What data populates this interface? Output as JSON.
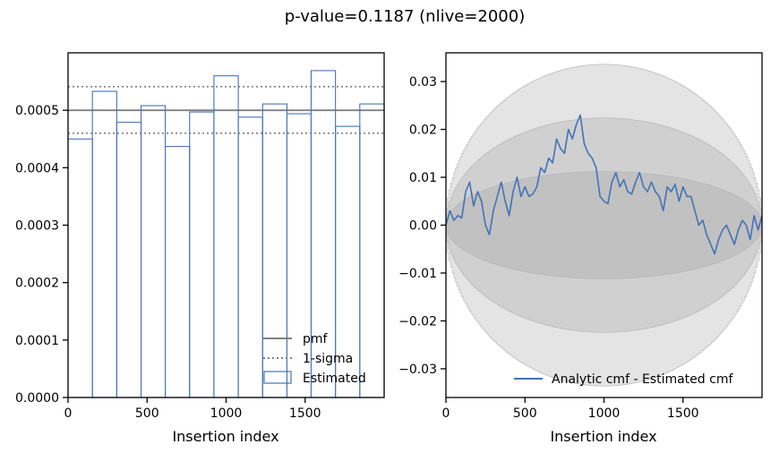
{
  "figure": {
    "suptitle": "p-value=0.1187 (nlive=2000)"
  },
  "chart_data": [
    {
      "type": "histogram",
      "title": "",
      "xlabel": "Insertion index",
      "ylabel": "",
      "xlim": [
        0,
        2000
      ],
      "ylim": [
        0,
        0.0006
      ],
      "xticks": [
        0,
        500,
        1000,
        1500
      ],
      "yticks": [
        0,
        0.0001,
        0.0002,
        0.0003,
        0.0004,
        0.0005
      ],
      "xtick_labels": [
        "0",
        "500",
        "1000",
        "1500"
      ],
      "ytick_labels": [
        "0.0000",
        "0.0001",
        "0.0002",
        "0.0003",
        "0.0004",
        "0.0005"
      ],
      "bin_edges": [
        0,
        154,
        308,
        462,
        615,
        769,
        923,
        1077,
        1231,
        1385,
        1538,
        1692,
        1846,
        2000
      ],
      "estimated": [
        0.00045,
        0.000533,
        0.000479,
        0.000508,
        0.000437,
        0.000497,
        0.00056,
        0.000488,
        0.000511,
        0.000494,
        0.000569,
        0.000472,
        0.000511
      ],
      "pmf": 0.0005,
      "sigma_band": [
        0.00046,
        0.000541
      ],
      "legend_position": "lower right",
      "legend": {
        "pmf": "pmf",
        "sigma": "1-sigma",
        "estimated": "Estimated"
      },
      "colors": {
        "pmf": "#808080",
        "sigma": "#808080",
        "estimated": "#4472b8"
      }
    },
    {
      "type": "line",
      "title": "",
      "xlabel": "Insertion index",
      "ylabel": "",
      "xlim": [
        0,
        2000
      ],
      "ylim": [
        -0.036,
        0.036
      ],
      "xticks": [
        0,
        500,
        1000,
        1500
      ],
      "yticks": [
        -0.03,
        -0.02,
        -0.01,
        0,
        0.01,
        0.02,
        0.03
      ],
      "xtick_labels": [
        "0",
        "500",
        "1000",
        "1500"
      ],
      "ytick_labels": [
        "−0.03",
        "−0.02",
        "−0.01",
        "0.00",
        "0.01",
        "0.02",
        "0.03"
      ],
      "bands_sigma_multiples": [
        1,
        2,
        3
      ],
      "band_sigma_peak": 0.0112,
      "series": [
        {
          "name": "Analytic cmf - Estimated cmf",
          "color": "#4472b8",
          "x": [
            0,
            25,
            50,
            75,
            100,
            125,
            150,
            175,
            200,
            225,
            250,
            275,
            300,
            325,
            350,
            375,
            400,
            425,
            450,
            475,
            500,
            525,
            550,
            575,
            600,
            625,
            650,
            675,
            700,
            725,
            750,
            775,
            800,
            825,
            850,
            875,
            900,
            925,
            950,
            975,
            1000,
            1025,
            1050,
            1075,
            1100,
            1125,
            1150,
            1175,
            1200,
            1225,
            1250,
            1275,
            1300,
            1325,
            1350,
            1375,
            1400,
            1425,
            1450,
            1475,
            1500,
            1525,
            1550,
            1575,
            1600,
            1625,
            1650,
            1675,
            1700,
            1725,
            1750,
            1775,
            1800,
            1825,
            1850,
            1875,
            1900,
            1925,
            1950,
            1975,
            2000
          ],
          "values": [
            0.0,
            0.003,
            0.001,
            0.002,
            0.0015,
            0.007,
            0.009,
            0.004,
            0.007,
            0.005,
            0.0,
            -0.002,
            0.003,
            0.006,
            0.009,
            0.005,
            0.002,
            0.007,
            0.01,
            0.006,
            0.008,
            0.006,
            0.0065,
            0.008,
            0.012,
            0.011,
            0.014,
            0.013,
            0.018,
            0.016,
            0.015,
            0.02,
            0.018,
            0.021,
            0.023,
            0.017,
            0.015,
            0.014,
            0.012,
            0.006,
            0.005,
            0.0045,
            0.009,
            0.011,
            0.008,
            0.0095,
            0.007,
            0.0065,
            0.009,
            0.011,
            0.008,
            0.007,
            0.009,
            0.007,
            0.006,
            0.003,
            0.008,
            0.007,
            0.0085,
            0.005,
            0.008,
            0.006,
            0.006,
            0.003,
            0.0,
            0.001,
            -0.002,
            -0.004,
            -0.006,
            -0.003,
            -0.001,
            0.0,
            -0.002,
            -0.004,
            -0.001,
            0.001,
            0.0,
            -0.003,
            0.002,
            -0.001,
            0.002
          ]
        }
      ],
      "legend_position": "lower right",
      "legend": {
        "series": "Analytic cmf - Estimated cmf"
      }
    }
  ]
}
